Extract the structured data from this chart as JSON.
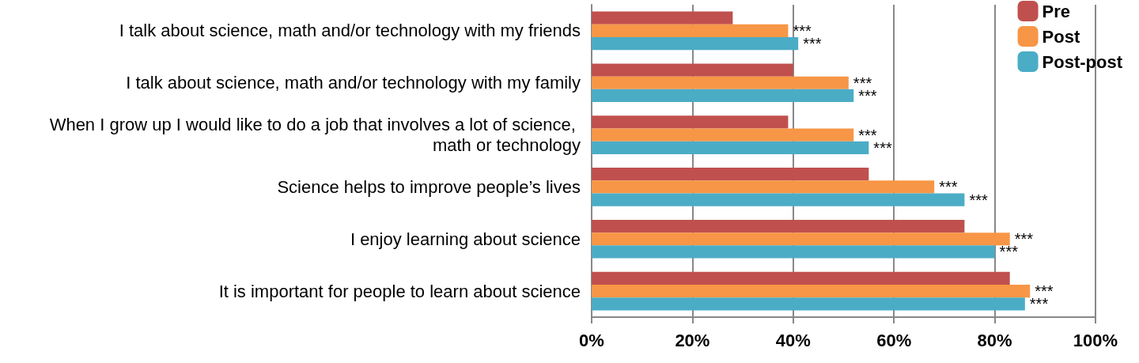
{
  "chart_data": {
    "type": "bar",
    "orientation": "horizontal",
    "categories": [
      "I talk about science, math and/or technology with my friends",
      "I talk about science, math and/or technology with my family",
      "When I grow up I would like to do a job that involves a lot of science, math or technology",
      "Science helps to improve people’s lives",
      "I enjoy learning about science",
      "It is important for people to learn about science"
    ],
    "series": [
      {
        "name": "Pre",
        "color": "#c0504d",
        "values": [
          28,
          40,
          39,
          55,
          74,
          83
        ]
      },
      {
        "name": "Post",
        "color": "#f79646",
        "values": [
          39,
          51,
          52,
          68,
          83,
          87
        ],
        "value_labels": [
          "***",
          "***",
          "***",
          "***",
          "***",
          "***"
        ]
      },
      {
        "name": "Post-post",
        "color": "#4bacc6",
        "values": [
          41,
          52,
          55,
          74,
          80,
          86
        ],
        "value_labels": [
          "***",
          "***",
          "***",
          "***",
          "***",
          "***"
        ]
      }
    ],
    "xlim": [
      0,
      100
    ],
    "xticks": [
      {
        "value": 0,
        "label": "0%"
      },
      {
        "value": 20,
        "label": "20%"
      },
      {
        "value": 40,
        "label": "40%"
      },
      {
        "value": 60,
        "label": "60%"
      },
      {
        "value": 80,
        "label": "80%"
      },
      {
        "value": 100,
        "label": "100%"
      }
    ],
    "grid": "x",
    "legend": "top right"
  }
}
